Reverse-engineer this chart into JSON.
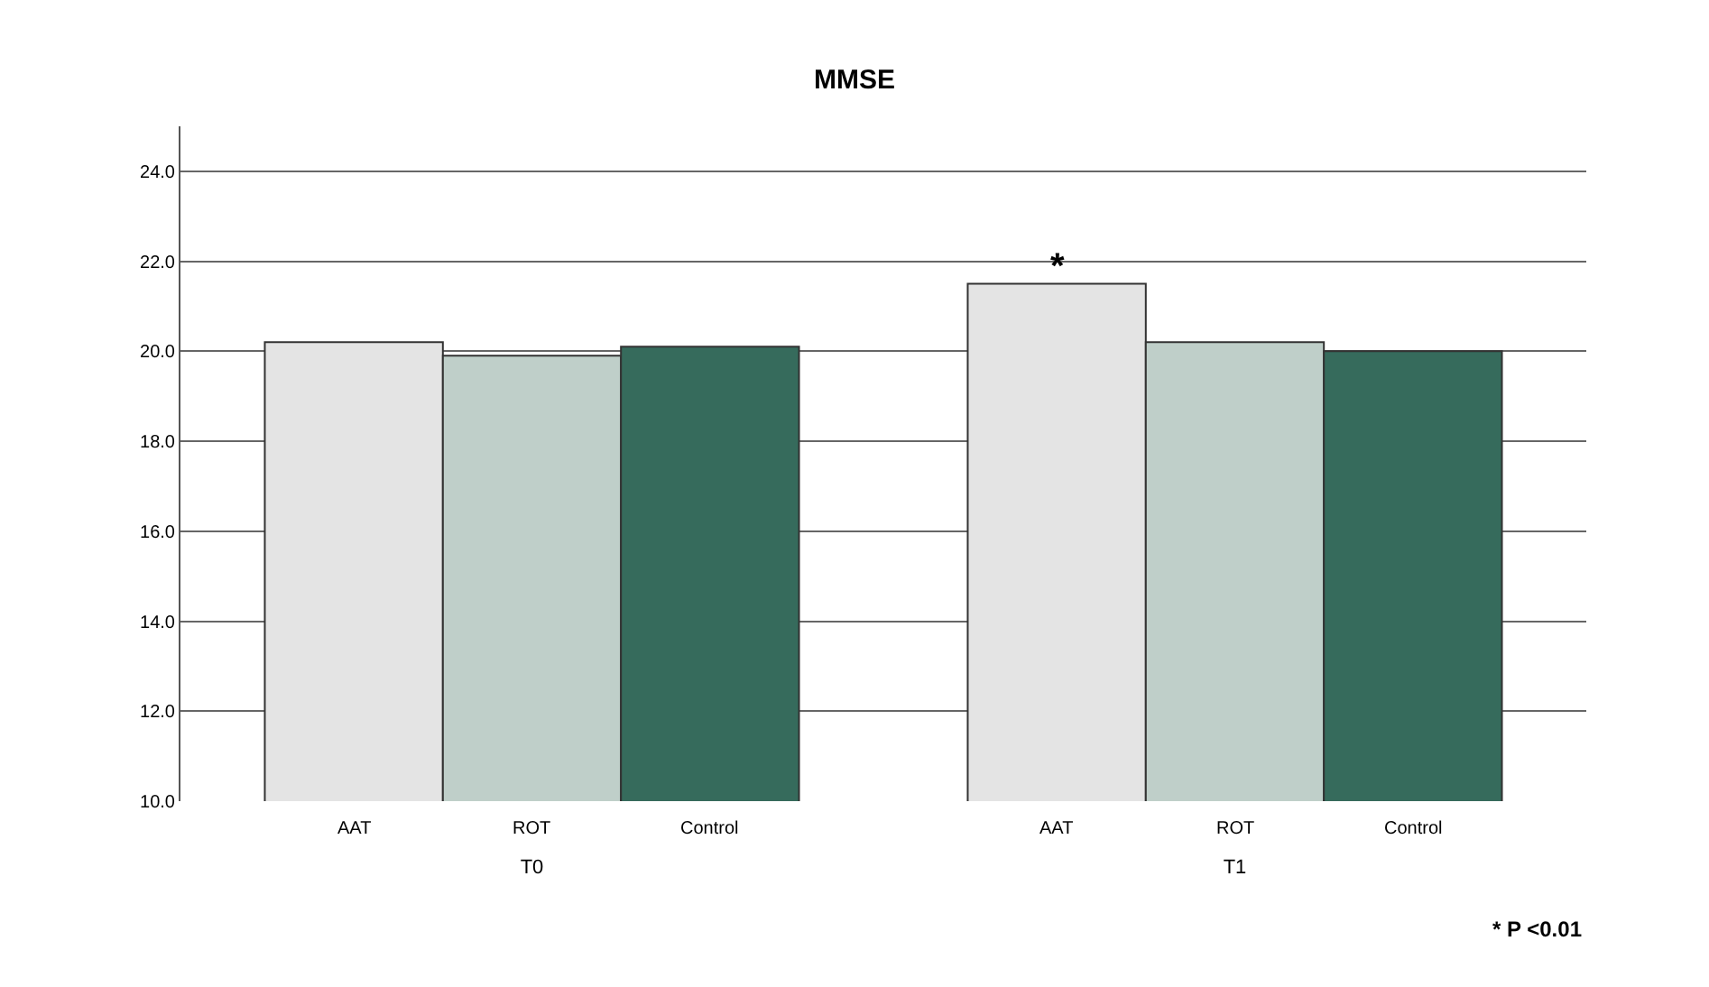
{
  "chart_data": {
    "type": "bar",
    "title": "MMSE",
    "categories": [
      "T0",
      "T1"
    ],
    "series": [
      {
        "name": "AAT",
        "color": "#e4e4e4",
        "values": [
          20.2,
          21.5
        ]
      },
      {
        "name": "ROT",
        "color": "#bfcfc9",
        "values": [
          19.9,
          20.2
        ]
      },
      {
        "name": "Control",
        "color": "#366b5c",
        "values": [
          20.1,
          20.0
        ]
      }
    ],
    "ylim": [
      10,
      25
    ],
    "yticks": [
      {
        "value": 10,
        "label": "10.0"
      },
      {
        "value": 12,
        "label": "12.0"
      },
      {
        "value": 14,
        "label": "14.0"
      },
      {
        "value": 16,
        "label": "16.0"
      },
      {
        "value": 18,
        "label": "18.0"
      },
      {
        "value": 20,
        "label": "20.0"
      },
      {
        "value": 22,
        "label": "22.0"
      },
      {
        "value": 24,
        "label": "24.0"
      }
    ],
    "grid": "y",
    "legend": false,
    "annotations": [
      "*",
      "* P <0.01"
    ]
  }
}
